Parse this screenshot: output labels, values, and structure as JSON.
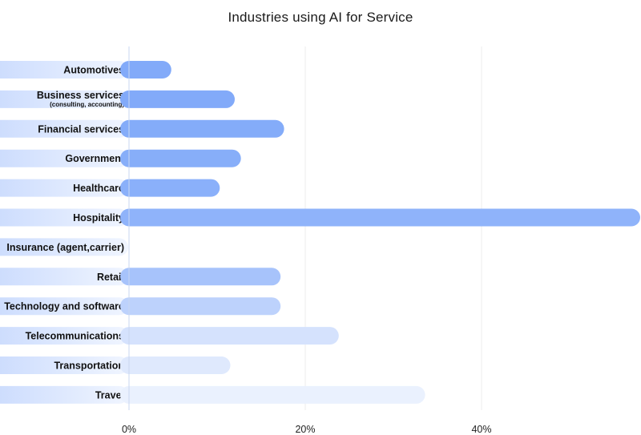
{
  "chart_data": {
    "type": "bar",
    "orientation": "horizontal",
    "title": "Industries using AI for Service",
    "xlabel": "",
    "ylabel": "",
    "xlim": [
      0,
      58
    ],
    "x_ticks": [
      "0%",
      "20%",
      "40%"
    ],
    "x_tick_values": [
      0,
      20,
      40
    ],
    "grid": true,
    "categories": [
      {
        "label": "Automotives",
        "sublabel": ""
      },
      {
        "label": "Business services",
        "sublabel": "(consulting, accounting)"
      },
      {
        "label": "Financial services",
        "sublabel": ""
      },
      {
        "label": "Government",
        "sublabel": ""
      },
      {
        "label": "Healthcare",
        "sublabel": ""
      },
      {
        "label": "Hospitality",
        "sublabel": ""
      },
      {
        "label": "Insurance (agent,carrier)",
        "sublabel": ""
      },
      {
        "label": "Retail",
        "sublabel": ""
      },
      {
        "label": "Technology and software",
        "sublabel": ""
      },
      {
        "label": "Telecommunications",
        "sublabel": ""
      },
      {
        "label": "Transportation",
        "sublabel": ""
      },
      {
        "label": "Travel",
        "sublabel": ""
      }
    ],
    "values": [
      4.8,
      12,
      17.6,
      12.7,
      10.3,
      58,
      0,
      17.2,
      17.2,
      23.8,
      11.5,
      33.6
    ],
    "bar_colors": [
      "#82aaf9",
      "#82aaf9",
      "#84acf9",
      "#87aef9",
      "#8ab0fa",
      "#8fb3fa",
      "#a4c1fb",
      "#a7c3fb",
      "#bdd2fc",
      "#d5e2fd",
      "#dfe9fd",
      "#eaf1fe"
    ],
    "label_pill_gradient": [
      "#c9dafd",
      "#f0f5ff"
    ]
  }
}
